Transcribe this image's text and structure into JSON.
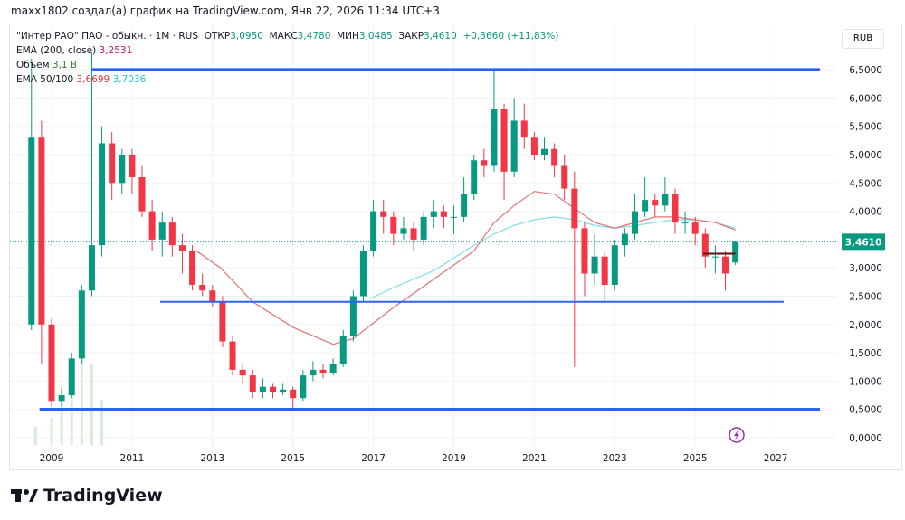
{
  "credit": "maxx1802 создал(а) график на TradingView.com, Янв 22, 2026 11:34 UTC+3",
  "legend": {
    "symbol": "\"Интер РАО\" ПАО - обыкн. · 1M · RUS",
    "open_label": "ОТКР",
    "open": "3,0950",
    "high_label": "МАКС",
    "high": "3,4780",
    "low_label": "МИН",
    "low": "3,0485",
    "close_label": "ЗАКР",
    "close": "3,4610",
    "change": "+0,3660 (+11,83%)",
    "ema200_label": "EMA (200, close)",
    "ema200": "3,2531",
    "volume_label": "Объём",
    "volume": "3,1 B",
    "ema50100_label": "EMA 50/100",
    "ema50": "3,6699",
    "ema100": "3,7036"
  },
  "currency": "RUB",
  "logo_text": "TradingView",
  "chart_data": {
    "type": "candlestick",
    "ylim": [
      0,
      6.8
    ],
    "xlim": [
      2008.3,
      2028.1
    ],
    "y_ticks": [
      "6,5000",
      "6,0000",
      "5,5000",
      "5,0000",
      "4,5000",
      "4,0000",
      "3,0000",
      "2,5000",
      "2,0000",
      "1,5000",
      "1,0000",
      "0,5000",
      "0,0000"
    ],
    "y_tick_values": [
      6.5,
      6,
      5.5,
      5,
      4.5,
      4,
      3,
      2.5,
      2,
      1.5,
      1,
      0.5,
      0
    ],
    "x_ticks": [
      "2009",
      "2011",
      "2013",
      "2015",
      "2017",
      "2019",
      "2021",
      "2023",
      "2025",
      "2027"
    ],
    "last_price": 3.461,
    "last_price_label": "3,4610",
    "colors": {
      "up": "#089981",
      "down": "#f23645",
      "ema50": "#e57373",
      "ema100": "#80deea",
      "hline": "#2962ff",
      "level": "#5d0f0f"
    },
    "candles": [
      [
        2008.5,
        2.0,
        6.7,
        1.9,
        5.3
      ],
      [
        2008.75,
        5.3,
        5.6,
        1.3,
        2.0
      ],
      [
        2009.0,
        2.0,
        2.1,
        0.55,
        0.65
      ],
      [
        2009.25,
        0.65,
        0.9,
        0.55,
        0.75
      ],
      [
        2009.5,
        0.75,
        1.5,
        0.7,
        1.4
      ],
      [
        2009.75,
        1.4,
        2.7,
        1.3,
        2.6
      ],
      [
        2010.0,
        2.6,
        6.8,
        2.5,
        3.4
      ],
      [
        2010.25,
        3.4,
        5.5,
        3.2,
        5.2
      ],
      [
        2010.5,
        5.2,
        5.4,
        4.2,
        4.5
      ],
      [
        2010.75,
        4.5,
        5.1,
        4.3,
        5.0
      ],
      [
        2011.0,
        5.0,
        5.1,
        4.3,
        4.6
      ],
      [
        2011.25,
        4.6,
        4.8,
        3.9,
        4.0
      ],
      [
        2011.5,
        4.0,
        4.2,
        3.3,
        3.5
      ],
      [
        2011.75,
        3.5,
        4.0,
        3.2,
        3.8
      ],
      [
        2012.0,
        3.8,
        3.9,
        3.2,
        3.4
      ],
      [
        2012.25,
        3.4,
        3.6,
        2.9,
        3.3
      ],
      [
        2012.5,
        3.3,
        3.4,
        2.6,
        2.7
      ],
      [
        2012.75,
        2.7,
        2.9,
        2.5,
        2.6
      ],
      [
        2013.0,
        2.6,
        2.7,
        2.3,
        2.4
      ],
      [
        2013.25,
        2.4,
        2.5,
        1.6,
        1.7
      ],
      [
        2013.5,
        1.7,
        1.8,
        1.1,
        1.2
      ],
      [
        2013.75,
        1.2,
        1.3,
        0.95,
        1.1
      ],
      [
        2014.0,
        1.1,
        1.2,
        0.7,
        0.8
      ],
      [
        2014.25,
        0.8,
        1.05,
        0.7,
        0.9
      ],
      [
        2014.5,
        0.9,
        0.95,
        0.7,
        0.8
      ],
      [
        2014.75,
        0.8,
        0.95,
        0.75,
        0.85
      ],
      [
        2015.0,
        0.85,
        0.9,
        0.5,
        0.7
      ],
      [
        2015.25,
        0.7,
        1.2,
        0.65,
        1.1
      ],
      [
        2015.5,
        1.1,
        1.35,
        1.0,
        1.2
      ],
      [
        2015.75,
        1.2,
        1.3,
        1.05,
        1.15
      ],
      [
        2016.0,
        1.15,
        1.4,
        1.1,
        1.3
      ],
      [
        2016.25,
        1.3,
        1.9,
        1.25,
        1.8
      ],
      [
        2016.5,
        1.8,
        2.6,
        1.7,
        2.5
      ],
      [
        2016.75,
        2.5,
        3.4,
        2.4,
        3.3
      ],
      [
        2017.0,
        3.3,
        4.2,
        3.2,
        4.0
      ],
      [
        2017.25,
        4.0,
        4.2,
        3.6,
        3.9
      ],
      [
        2017.5,
        3.9,
        4.0,
        3.4,
        3.6
      ],
      [
        2017.75,
        3.6,
        3.9,
        3.5,
        3.7
      ],
      [
        2018.0,
        3.7,
        3.8,
        3.3,
        3.5
      ],
      [
        2018.25,
        3.5,
        4.0,
        3.4,
        3.9
      ],
      [
        2018.5,
        3.9,
        4.2,
        3.7,
        4.0
      ],
      [
        2018.75,
        4.0,
        4.1,
        3.7,
        3.9
      ],
      [
        2019.0,
        3.9,
        4.1,
        3.6,
        3.9
      ],
      [
        2019.25,
        3.9,
        4.6,
        3.8,
        4.3
      ],
      [
        2019.5,
        4.3,
        5.0,
        4.2,
        4.9
      ],
      [
        2019.75,
        4.9,
        5.1,
        4.6,
        4.8
      ],
      [
        2020.0,
        4.8,
        6.5,
        4.7,
        5.8
      ],
      [
        2020.25,
        5.8,
        5.9,
        4.2,
        4.7
      ],
      [
        2020.5,
        4.7,
        6.0,
        4.6,
        5.6
      ],
      [
        2020.75,
        5.6,
        5.9,
        5.1,
        5.3
      ],
      [
        2021.0,
        5.3,
        5.4,
        4.9,
        5.0
      ],
      [
        2021.25,
        5.0,
        5.3,
        4.9,
        5.1
      ],
      [
        2021.5,
        5.1,
        5.2,
        4.6,
        4.8
      ],
      [
        2021.75,
        4.8,
        5.0,
        4.2,
        4.4
      ],
      [
        2022.0,
        4.4,
        4.7,
        1.25,
        3.7
      ],
      [
        2022.25,
        3.7,
        3.8,
        2.5,
        2.9
      ],
      [
        2022.5,
        2.9,
        3.6,
        2.7,
        3.2
      ],
      [
        2022.75,
        3.2,
        3.3,
        2.4,
        2.7
      ],
      [
        2023.0,
        2.7,
        3.5,
        2.6,
        3.4
      ],
      [
        2023.25,
        3.4,
        3.7,
        3.2,
        3.6
      ],
      [
        2023.5,
        3.6,
        4.3,
        3.5,
        4.0
      ],
      [
        2023.75,
        4.0,
        4.6,
        3.9,
        4.2
      ],
      [
        2024.0,
        4.2,
        4.3,
        3.9,
        4.1
      ],
      [
        2024.25,
        4.1,
        4.6,
        4.0,
        4.3
      ],
      [
        2024.5,
        4.3,
        4.4,
        3.6,
        3.8
      ],
      [
        2024.75,
        3.8,
        4.0,
        3.6,
        3.8
      ],
      [
        2025.0,
        3.8,
        3.9,
        3.4,
        3.6
      ],
      [
        2025.25,
        3.6,
        3.7,
        3.0,
        3.2
      ],
      [
        2025.5,
        3.2,
        3.4,
        2.9,
        3.2
      ],
      [
        2025.75,
        3.2,
        3.3,
        2.6,
        2.9
      ],
      [
        2026.0,
        3.095,
        3.478,
        3.0485,
        3.461
      ]
    ],
    "ema50": [
      [
        2012.6,
        3.3
      ],
      [
        2013.2,
        3.0
      ],
      [
        2014.0,
        2.4
      ],
      [
        2015.0,
        1.95
      ],
      [
        2016.0,
        1.65
      ],
      [
        2016.5,
        1.75
      ],
      [
        2017.5,
        2.3
      ],
      [
        2018.5,
        2.8
      ],
      [
        2019.5,
        3.3
      ],
      [
        2020.0,
        3.8
      ],
      [
        2020.5,
        4.1
      ],
      [
        2021.0,
        4.35
      ],
      [
        2021.5,
        4.3
      ],
      [
        2022.0,
        4.05
      ],
      [
        2022.5,
        3.8
      ],
      [
        2023.0,
        3.7
      ],
      [
        2023.5,
        3.8
      ],
      [
        2024.0,
        3.9
      ],
      [
        2024.5,
        3.9
      ],
      [
        2025.0,
        3.85
      ],
      [
        2025.5,
        3.8
      ],
      [
        2026.0,
        3.67
      ]
    ],
    "ema100": [
      [
        2016.9,
        2.45
      ],
      [
        2017.5,
        2.65
      ],
      [
        2018.5,
        2.95
      ],
      [
        2019.5,
        3.4
      ],
      [
        2020.0,
        3.6
      ],
      [
        2020.5,
        3.75
      ],
      [
        2021.0,
        3.85
      ],
      [
        2021.5,
        3.9
      ],
      [
        2022.0,
        3.85
      ],
      [
        2022.5,
        3.75
      ],
      [
        2023.0,
        3.7
      ],
      [
        2023.5,
        3.75
      ],
      [
        2024.0,
        3.8
      ],
      [
        2024.5,
        3.85
      ],
      [
        2025.0,
        3.85
      ],
      [
        2025.5,
        3.8
      ],
      [
        2026.0,
        3.7
      ]
    ],
    "horizontal_lines": [
      {
        "price": 6.5,
        "from": 2010.0,
        "to": 2028.1
      },
      {
        "price": 2.4,
        "from": 2011.7,
        "to": 2027.2
      },
      {
        "price": 0.5,
        "from": 2008.7,
        "to": 2028.1
      }
    ],
    "level_line": {
      "price": 3.25,
      "from": 2025.2,
      "to": 2026.0
    },
    "volume": [
      [
        2008.6,
        0.2
      ],
      [
        2009.0,
        0.3
      ],
      [
        2009.25,
        0.6
      ],
      [
        2009.5,
        0.8
      ],
      [
        2009.75,
        1.0
      ],
      [
        2010.0,
        0.9
      ],
      [
        2010.25,
        0.5
      ]
    ]
  }
}
